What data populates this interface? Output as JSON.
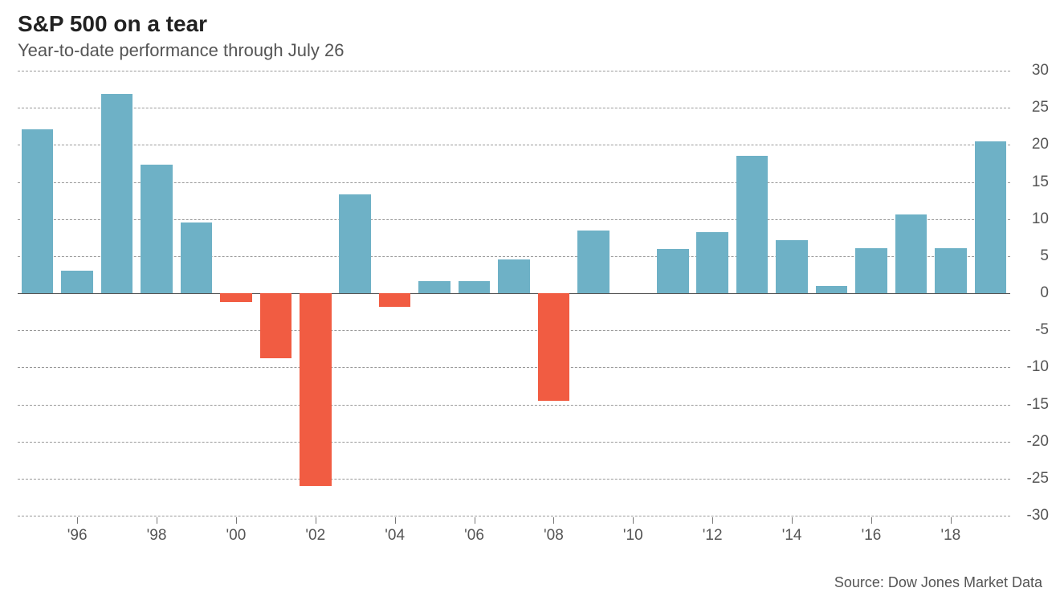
{
  "title": "S&P 500 on a tear",
  "subtitle": "Year-to-date performance through July 26",
  "source": "Source: Dow Jones Market Data",
  "chart": {
    "type": "bar",
    "years": [
      1995,
      1996,
      1997,
      1998,
      1999,
      2000,
      2001,
      2002,
      2003,
      2004,
      2005,
      2006,
      2007,
      2008,
      2009,
      2010,
      2011,
      2012,
      2013,
      2014,
      2015,
      2016,
      2017,
      2018,
      2019
    ],
    "values": [
      22.1,
      3.0,
      26.9,
      17.3,
      9.5,
      -1.2,
      -8.8,
      -26.0,
      13.3,
      -1.8,
      1.6,
      1.6,
      4.6,
      -14.5,
      8.5,
      null,
      6.0,
      8.2,
      18.5,
      7.1,
      1.0,
      6.1,
      10.6,
      6.1,
      20.5
    ],
    "positive_color": "#6eb1c6",
    "negative_color": "#f15c42",
    "background_color": "#ffffff",
    "grid_color": "#999999",
    "grid_style": "dashed",
    "zero_line_color": "#555555",
    "ylim": [
      -30,
      30
    ],
    "ytick_step": 5,
    "yticks": [
      -30,
      -25,
      -20,
      -15,
      -10,
      -5,
      0,
      5,
      10,
      15,
      20,
      25,
      30
    ],
    "xtick_years": [
      1996,
      1998,
      2000,
      2002,
      2004,
      2006,
      2008,
      2010,
      2012,
      2014,
      2016,
      2018
    ],
    "xtick_format_prefix": "'",
    "bar_width_ratio": 0.8,
    "title_fontsize": 28,
    "title_color": "#222222",
    "title_weight": "700",
    "subtitle_fontsize": 22,
    "subtitle_color": "#555555",
    "axis_label_fontsize": 19,
    "axis_label_color": "#555555",
    "source_fontsize": 18,
    "source_color": "#555555"
  }
}
